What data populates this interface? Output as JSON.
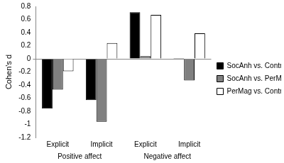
{
  "chart_data": {
    "type": "bar",
    "y_label": "Cohen's d",
    "categories": [
      "Explicit",
      "Implicit",
      "Explicit",
      "Implicit"
    ],
    "groups": [
      {
        "name": "Positive affect",
        "span": 2
      },
      {
        "name": "Negative affect",
        "span": 2
      }
    ],
    "series": [
      {
        "name": "SocAnh vs. Control",
        "color": "#000000",
        "values": [
          -0.76,
          -0.63,
          0.71,
          0.01
        ]
      },
      {
        "name": "SocAnh vs. PerMag",
        "color": "#808080",
        "values": [
          -0.47,
          -0.96,
          0.04,
          -0.33
        ]
      },
      {
        "name": "PerMag vs. Control",
        "color": "#ffffff",
        "values": [
          -0.19,
          0.24,
          0.67,
          0.39
        ]
      }
    ],
    "ylim": [
      -1.2,
      0.8
    ],
    "yticks": [
      -1.2,
      -1,
      -0.8,
      -0.6,
      -0.4,
      -0.2,
      0,
      0.2,
      0.4,
      0.6,
      0.8
    ],
    "grid": false,
    "legend": "right"
  }
}
